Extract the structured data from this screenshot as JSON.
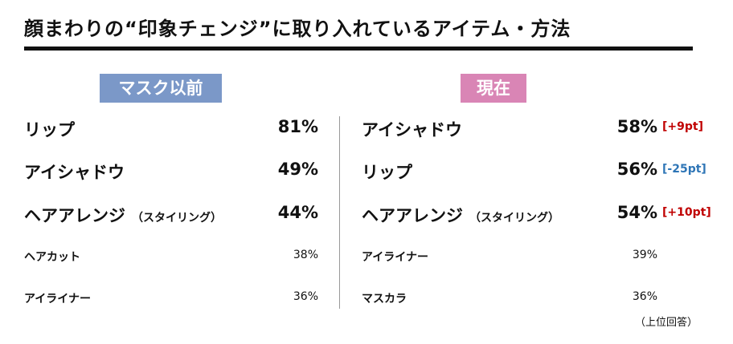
{
  "title": "顔まわりの“印象チェンジ”に取り入れているアイテム・方法",
  "before": {
    "heading": "マスク以前",
    "rows": [
      {
        "item": "リップ",
        "value": "81%"
      },
      {
        "item": "アイシャドウ",
        "value": "49%"
      },
      {
        "item": "ヘアアレンジ",
        "note": "（スタイリング）",
        "value": "44%"
      },
      {
        "item": "ヘアカット",
        "value": "38%"
      },
      {
        "item": "アイライナー",
        "value": "36%"
      }
    ]
  },
  "now": {
    "heading": "現在",
    "rows": [
      {
        "item": "アイシャドウ",
        "value": "58%",
        "change": "[+9pt]"
      },
      {
        "item": "リップ",
        "value": "56%",
        "change": "[-25pt]"
      },
      {
        "item": "ヘアアレンジ",
        "note": "（スタイリング）",
        "value": "54%",
        "change": "[+10pt]"
      },
      {
        "item": "アイライナー",
        "value": "39%"
      },
      {
        "item": "マスカラ",
        "value": "36%"
      }
    ]
  },
  "footnote": "（上位回答）"
}
